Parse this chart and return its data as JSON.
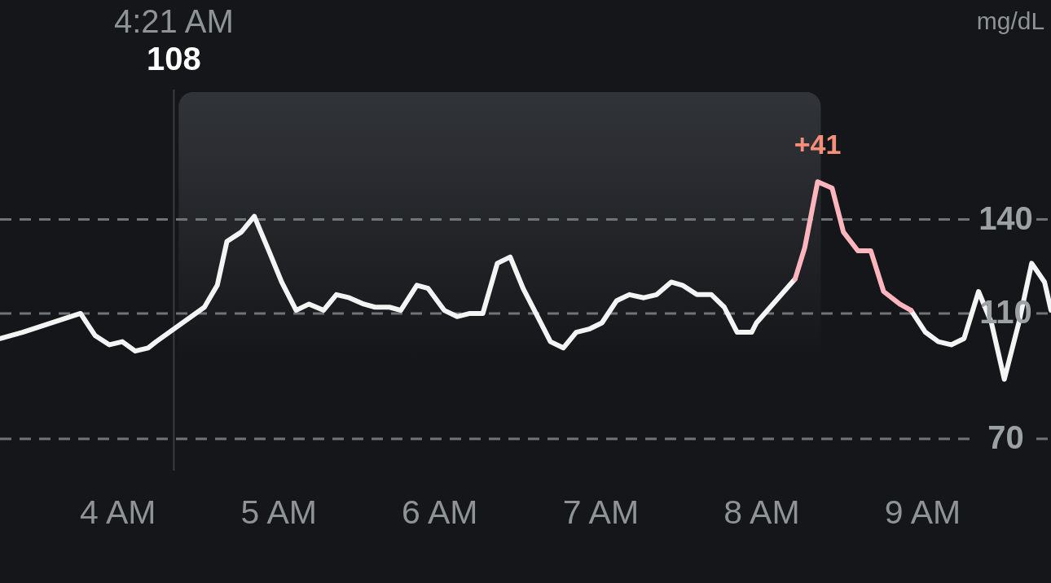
{
  "chart_data": {
    "type": "line",
    "x": [
      3.27,
      3.41,
      3.77,
      3.86,
      3.95,
      4.03,
      4.11,
      4.19,
      4.24,
      4.54,
      4.62,
      4.68,
      4.77,
      4.85,
      4.94,
      5.02,
      5.11,
      5.19,
      5.28,
      5.36,
      5.44,
      5.53,
      5.6,
      5.69,
      5.76,
      5.86,
      5.93,
      6.03,
      6.11,
      6.19,
      6.27,
      6.36,
      6.44,
      6.52,
      6.6,
      6.69,
      6.77,
      6.85,
      6.93,
      7.01,
      7.1,
      7.18,
      7.27,
      7.35,
      7.44,
      7.51,
      7.6,
      7.69,
      7.77,
      7.85,
      7.94,
      7.97,
      8.21,
      8.27,
      8.35,
      8.44,
      8.51,
      8.6,
      8.68,
      8.76,
      8.86,
      8.93,
      9.02,
      9.1,
      9.18,
      9.26,
      9.35,
      9.43,
      9.51,
      9.6,
      9.68,
      9.76,
      9.8
    ],
    "series": [
      {
        "color": "#f4f4f4",
        "values": [
          102,
          104,
          110,
          103,
          100,
          101,
          98,
          99,
          101,
          112,
          119,
          133,
          136,
          141,
          130,
          120,
          111,
          113,
          111,
          116,
          115,
          113,
          112,
          112,
          111,
          119,
          118,
          111,
          109,
          110,
          110,
          126,
          128,
          118,
          110,
          101,
          99,
          104,
          105,
          107,
          114,
          116,
          115,
          116,
          120,
          119,
          116,
          116,
          112,
          104,
          104,
          107,
          121,
          null,
          null,
          null,
          null,
          null,
          null,
          null,
          null,
          111,
          104,
          101,
          100,
          102,
          117,
          107,
          89,
          107,
          126,
          120,
          111
        ]
      },
      {
        "color": "#ffb5be",
        "values": [
          null,
          null,
          null,
          null,
          null,
          null,
          null,
          null,
          null,
          null,
          null,
          null,
          null,
          null,
          null,
          null,
          null,
          null,
          null,
          null,
          null,
          null,
          null,
          null,
          null,
          null,
          null,
          null,
          null,
          null,
          null,
          null,
          null,
          null,
          null,
          null,
          null,
          null,
          null,
          null,
          null,
          null,
          null,
          null,
          null,
          null,
          null,
          null,
          null,
          null,
          null,
          null,
          121,
          131,
          152,
          150,
          136,
          130,
          130,
          117,
          113,
          111,
          null,
          null,
          null,
          null,
          null,
          null,
          null,
          null,
          null,
          null,
          null
        ]
      }
    ],
    "xlim": [
      3.27,
      9.8
    ],
    "ylim": [
      24,
      210
    ],
    "xticks": [
      {
        "value": 4,
        "label": "4 AM"
      },
      {
        "value": 5,
        "label": "5 AM"
      },
      {
        "value": 6,
        "label": "6 AM"
      },
      {
        "value": 7,
        "label": "7 AM"
      },
      {
        "value": 8,
        "label": "8 AM"
      },
      {
        "value": 9,
        "label": "9 AM"
      }
    ],
    "yticks": [
      70,
      110,
      140
    ],
    "ylabel": "mg/dL",
    "grid": "y",
    "line_style": "solid",
    "ref_lines": [
      {
        "axis": "x",
        "value": 4.35,
        "label": "4:21 AM",
        "color": "#3a3d42"
      }
    ],
    "bands": [
      {
        "axis": "x",
        "from": 4.38,
        "to": 8.37,
        "color": "#313438"
      }
    ],
    "annotations": [
      "108",
      {
        "text": "+41",
        "x": 8.35,
        "y": 152
      }
    ]
  }
}
